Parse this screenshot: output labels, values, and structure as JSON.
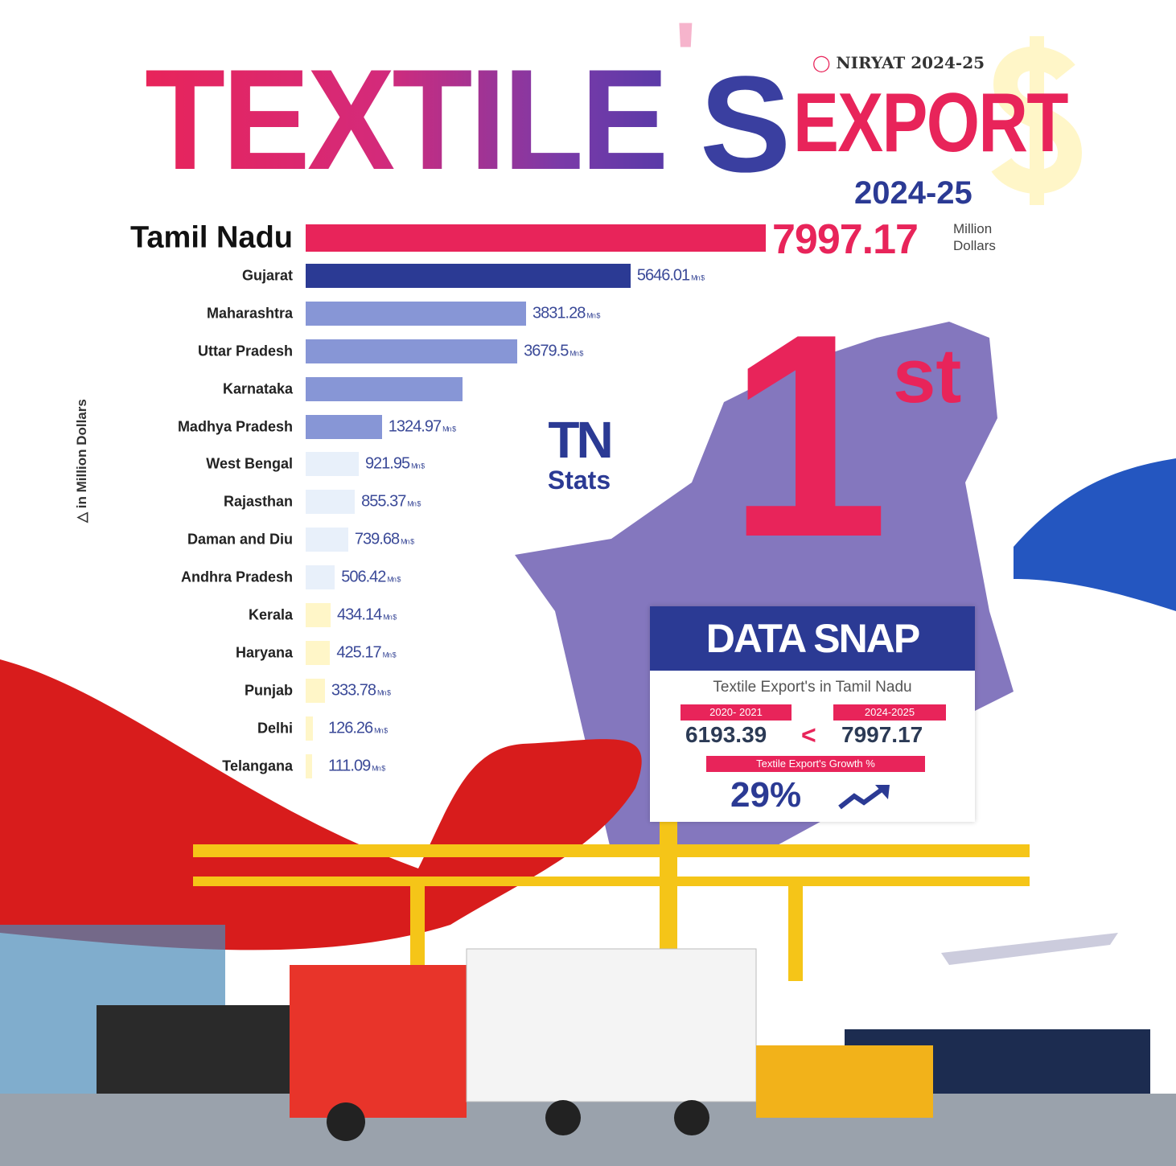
{
  "header": {
    "title_word": "TEXTILE",
    "apostrophe": "'",
    "title_s": "S",
    "brand": "NIRYAT 2024-25",
    "export_word": "EXPORT",
    "year": "2024-25"
  },
  "colors": {
    "primary_pink": "#e8245a",
    "dark_blue": "#2b3a94",
    "mid_blue": "#8796d6",
    "light_blue": "#e8f0fa",
    "light_yellow": "#fff6c8"
  },
  "chart_data": {
    "type": "bar",
    "orientation": "horizontal",
    "unit_note": "in Million Dollars",
    "unit_suffix": "Mn $",
    "categories": [
      "Tamil Nadu",
      "Gujarat",
      "Maharashtra",
      "Uttar Pradesh",
      "Karnataka",
      "Madhya Pradesh",
      "West Bengal",
      "Rajasthan",
      "Daman and Diu",
      "Andhra Pradesh",
      "Kerala",
      "Haryana",
      "Punjab",
      "Delhi",
      "Telangana"
    ],
    "values": [
      7997.17,
      5646.01,
      3831.28,
      3679.5,
      2730,
      1324.97,
      921.95,
      855.37,
      739.68,
      506.42,
      434.14,
      425.17,
      333.78,
      126.26,
      111.09
    ],
    "labels": [
      "7997.17",
      "5646.01",
      "3831.28",
      "3679.5",
      null,
      "1324.97",
      "921.95",
      "855.37",
      "739.68",
      "506.42",
      "434.14",
      "425.17",
      "333.78",
      "126.26",
      "111.09"
    ],
    "bar_colors": [
      "#e8245a",
      "#2b3a94",
      "#8796d6",
      "#8796d6",
      "#8796d6",
      "#8796d6",
      "#e8f0fa",
      "#e8f0fa",
      "#e8f0fa",
      "#e8f0fa",
      "#fff6c8",
      "#fff6c8",
      "#fff6c8",
      "#fff6c8",
      "#fff6c8"
    ],
    "top_unit": "Million Dollars"
  },
  "rank": {
    "number": "1",
    "suffix": "st"
  },
  "tn_stats": {
    "logo": "TN",
    "label": "Stats"
  },
  "data_snap": {
    "title": "DATA SNAP",
    "subtitle": "Textile Export's in Tamil Nadu",
    "period_a": "2020- 2021",
    "value_a": "6193.39",
    "comparator": "<",
    "period_b": "2024-2025",
    "value_b": "7997.17",
    "growth_label": "Textile Export's Growth %",
    "growth_value": "29%",
    "growth_icon": "trend-up-arrow-icon"
  }
}
